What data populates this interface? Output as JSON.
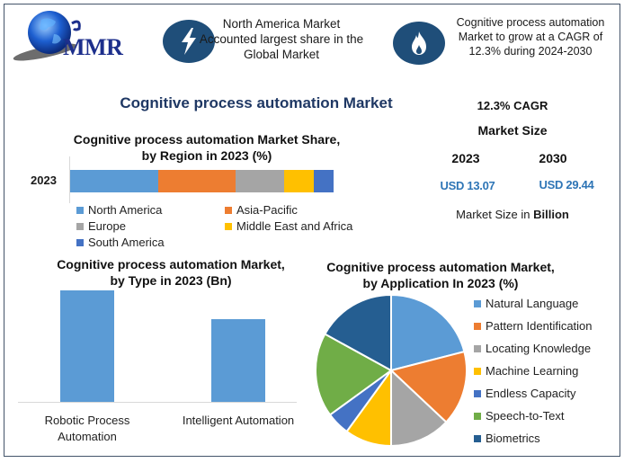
{
  "brand": {
    "logo_text": "MMR"
  },
  "header": {
    "highlight_1": {
      "icon": "lightning-bolt-icon",
      "lines": [
        "North America Market",
        "Accounted largest share in the",
        "Global Market"
      ]
    },
    "highlight_2": {
      "icon": "flame-icon",
      "lines": [
        "Cognitive process automation",
        "Market to grow at a CAGR of",
        "12.3% during 2024-2030"
      ]
    }
  },
  "main_title": "Cognitive process automation Market",
  "kpi": {
    "cagr": "12.3% CAGR",
    "market_size_label": "Market Size",
    "years": [
      {
        "year": "2023",
        "value": "USD 13.07"
      },
      {
        "year": "2030",
        "value": "USD 29.44"
      }
    ],
    "unit_prefix": "Market Size in ",
    "unit": "Billion"
  },
  "colors": {
    "frame": "#44546a",
    "icon_bg": "#1f4e79",
    "title": "#1f3864",
    "usd": "#2e75b6"
  },
  "chart_data": [
    {
      "type": "bar",
      "orientation": "horizontal-stacked",
      "title": "Cognitive process automation Market Share, by Region in 2023 (%)",
      "title_lines": [
        "Cognitive process automation Market Share,",
        "by Region in 2023 (%)"
      ],
      "categories": [
        "2023"
      ],
      "series": [
        {
          "name": "North America",
          "values": [
            33.4
          ],
          "color": "#5b9bd5"
        },
        {
          "name": "Asia-Pacific",
          "values": [
            29.4
          ],
          "color": "#ed7d31"
        },
        {
          "name": "Europe",
          "values": [
            18.4
          ],
          "color": "#a5a5a5"
        },
        {
          "name": "Middle East and Africa",
          "values": [
            11.3
          ],
          "color": "#ffc000"
        },
        {
          "name": "South America",
          "values": [
            7.5
          ],
          "color": "#4472c4"
        }
      ],
      "xlabel": "",
      "ylabel": "",
      "legend_position": "bottom",
      "grid": false
    },
    {
      "type": "bar",
      "title": "Cognitive process automation Market, by Type in 2023 (Bn)",
      "title_lines": [
        "Cognitive process automation Market,",
        "by Type in 2023 (Bn)"
      ],
      "categories": [
        "Robotic Process Automation",
        "Intelligent Automation"
      ],
      "category_lines": [
        [
          "Robotic Process",
          "Automation"
        ],
        [
          "Intelligent Automation"
        ]
      ],
      "values": [
        7.5,
        5.57
      ],
      "color": "#5b9bd5",
      "xlabel": "",
      "ylabel": "",
      "grid": false,
      "legend_position": "none"
    },
    {
      "type": "pie",
      "title": "Cognitive process automation Market, by Application In 2023 (%)",
      "title_lines": [
        "Cognitive process automation Market,",
        "by Application In 2023 (%)"
      ],
      "categories": [
        "Natural Language",
        "Pattern Identification",
        "Locating Knowledge",
        "Machine Learning",
        "Endless Capacity",
        "Speech-to-Text",
        "Biometrics"
      ],
      "values": [
        21,
        16,
        13,
        10,
        5,
        18,
        17
      ],
      "colors": [
        "#5b9bd5",
        "#ed7d31",
        "#a5a5a5",
        "#ffc000",
        "#4472c4",
        "#70ad47",
        "#255e91"
      ],
      "legend_position": "right"
    }
  ]
}
